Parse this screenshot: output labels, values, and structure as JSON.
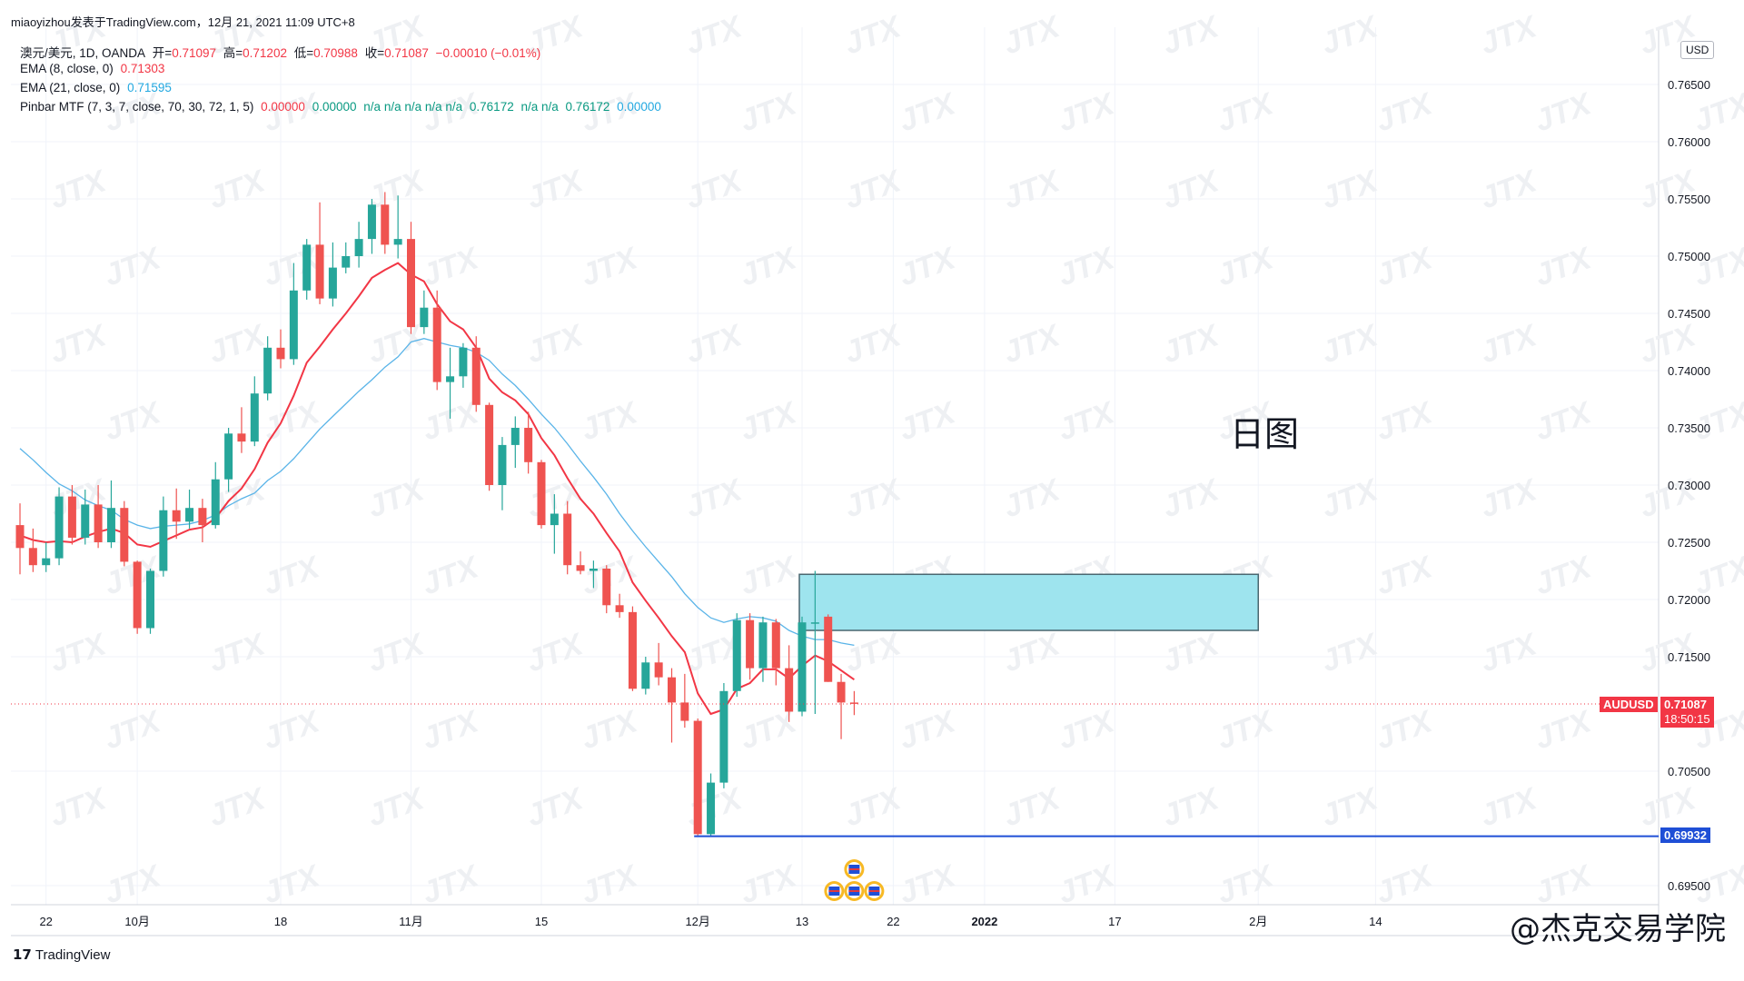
{
  "header": {
    "published_line": "miaoyizhou发表于TradingView.com，12月 21, 2021 11:09 UTC+8"
  },
  "legend": {
    "symbol_line": {
      "name": "澳元/美元, 1D, OANDA",
      "open_label": "开=",
      "open_value": "0.71097",
      "high_label": "高=",
      "high_value": "0.71202",
      "low_label": "低=",
      "low_value": "0.70988",
      "close_label": "收=",
      "close_value": "0.71087",
      "change": "−0.00010 (−0.01%)"
    },
    "ema8": {
      "label": "EMA (8, close, 0)",
      "value": "0.71303",
      "color": "#f23645"
    },
    "ema21": {
      "label": "EMA (21, close, 0)",
      "value": "0.71595",
      "color": "#22a8e0"
    },
    "pinbar": {
      "label": "Pinbar MTF (7, 3, 7, close, 70, 30, 72, 1, 5)",
      "v1": "0.00000",
      "v2": "0.00000",
      "na": "n/a n/a n/a n/a n/a",
      "v3": "0.76172",
      "na2": "n/a n/a",
      "v4": "0.76172",
      "v5": "0.00000"
    }
  },
  "currency_button": "USD",
  "annotation_text": "日图",
  "watermark_text": "@杰克交易学院",
  "logo_text": "TradingView",
  "price_tags": {
    "symbol": "AUDUSD",
    "last_price": "0.71087",
    "countdown": "18:50:15",
    "support_price": "0.69932"
  },
  "colors": {
    "up": "#26a69a",
    "down": "#ef5350",
    "ema8": "#f23645",
    "ema21": "#5ab4e8",
    "zone_fill": "#9ee4ee",
    "support_line": "#1f4fd6"
  },
  "chart_data": {
    "type": "candlestick",
    "symbol": "AUDUSD",
    "timeframe": "1D",
    "y_ticks": [
      "0.76500",
      "0.76000",
      "0.75500",
      "0.75000",
      "0.74500",
      "0.74000",
      "0.73500",
      "0.73000",
      "0.72500",
      "0.72000",
      "0.71500",
      "0.70500",
      "0.69500"
    ],
    "ylim": [
      0.694,
      0.7715
    ],
    "x_ticks": [
      {
        "label": "22",
        "bar": 2
      },
      {
        "label": "10月",
        "bar": 9
      },
      {
        "label": "18",
        "bar": 20
      },
      {
        "label": "11月",
        "bar": 30
      },
      {
        "label": "15",
        "bar": 40
      },
      {
        "label": "12月",
        "bar": 52
      },
      {
        "label": "13",
        "bar": 60
      },
      {
        "label": "22",
        "bar": 67
      },
      {
        "label": "2022",
        "bar": 74
      },
      {
        "label": "17",
        "bar": 84
      },
      {
        "label": "2月",
        "bar": 95
      },
      {
        "label": "14",
        "bar": 104
      }
    ],
    "candles": [
      [
        0.7265,
        0.7284,
        0.7222,
        0.7245
      ],
      [
        0.7245,
        0.7262,
        0.7224,
        0.723
      ],
      [
        0.723,
        0.725,
        0.7224,
        0.7236
      ],
      [
        0.7236,
        0.7298,
        0.723,
        0.729
      ],
      [
        0.729,
        0.73,
        0.7248,
        0.7254
      ],
      [
        0.7254,
        0.7296,
        0.7248,
        0.7283
      ],
      [
        0.7283,
        0.73,
        0.7245,
        0.725
      ],
      [
        0.725,
        0.7304,
        0.7245,
        0.728
      ],
      [
        0.728,
        0.7286,
        0.7229,
        0.7233
      ],
      [
        0.7233,
        0.7234,
        0.717,
        0.7175
      ],
      [
        0.7175,
        0.7227,
        0.717,
        0.7225
      ],
      [
        0.7225,
        0.729,
        0.722,
        0.7278
      ],
      [
        0.7278,
        0.7297,
        0.7253,
        0.7268
      ],
      [
        0.7268,
        0.7296,
        0.7262,
        0.728
      ],
      [
        0.728,
        0.7288,
        0.725,
        0.7265
      ],
      [
        0.7265,
        0.732,
        0.7262,
        0.7305
      ],
      [
        0.7305,
        0.735,
        0.7294,
        0.7345
      ],
      [
        0.7345,
        0.7368,
        0.7328,
        0.7338
      ],
      [
        0.7338,
        0.7395,
        0.7334,
        0.738
      ],
      [
        0.738,
        0.743,
        0.7374,
        0.742
      ],
      [
        0.742,
        0.7436,
        0.7402,
        0.741
      ],
      [
        0.741,
        0.7494,
        0.7405,
        0.747
      ],
      [
        0.747,
        0.7515,
        0.7462,
        0.751
      ],
      [
        0.751,
        0.7547,
        0.7458,
        0.7463
      ],
      [
        0.7463,
        0.7512,
        0.7456,
        0.749
      ],
      [
        0.749,
        0.7512,
        0.7485,
        0.75
      ],
      [
        0.75,
        0.753,
        0.749,
        0.7515
      ],
      [
        0.7515,
        0.755,
        0.7502,
        0.7545
      ],
      [
        0.7545,
        0.7556,
        0.7502,
        0.751
      ],
      [
        0.751,
        0.7553,
        0.7498,
        0.7515
      ],
      [
        0.7515,
        0.753,
        0.7432,
        0.7438
      ],
      [
        0.7438,
        0.747,
        0.7432,
        0.7455
      ],
      [
        0.7455,
        0.747,
        0.7383,
        0.739
      ],
      [
        0.739,
        0.742,
        0.7358,
        0.7395
      ],
      [
        0.7395,
        0.7424,
        0.7385,
        0.742
      ],
      [
        0.742,
        0.743,
        0.7364,
        0.737
      ],
      [
        0.737,
        0.7372,
        0.7295,
        0.73
      ],
      [
        0.73,
        0.7342,
        0.7278,
        0.7335
      ],
      [
        0.7335,
        0.736,
        0.7315,
        0.735
      ],
      [
        0.735,
        0.7364,
        0.731,
        0.732
      ],
      [
        0.732,
        0.7322,
        0.7262,
        0.7265
      ],
      [
        0.7265,
        0.7292,
        0.724,
        0.7275
      ],
      [
        0.7275,
        0.7286,
        0.7222,
        0.723
      ],
      [
        0.723,
        0.7242,
        0.7222,
        0.7225
      ],
      [
        0.7225,
        0.7234,
        0.721,
        0.7227
      ],
      [
        0.7227,
        0.723,
        0.7188,
        0.7195
      ],
      [
        0.7195,
        0.7205,
        0.7184,
        0.7189
      ],
      [
        0.7189,
        0.7194,
        0.712,
        0.7122
      ],
      [
        0.7122,
        0.715,
        0.7117,
        0.7145
      ],
      [
        0.7145,
        0.7162,
        0.7125,
        0.7132
      ],
      [
        0.7132,
        0.714,
        0.7075,
        0.711
      ],
      [
        0.711,
        0.7135,
        0.7088,
        0.7094
      ],
      [
        0.7094,
        0.7096,
        0.6993,
        0.6995
      ],
      [
        0.6995,
        0.7048,
        0.6993,
        0.704
      ],
      [
        0.704,
        0.7127,
        0.7035,
        0.712
      ],
      [
        0.712,
        0.7188,
        0.7115,
        0.7182
      ],
      [
        0.7182,
        0.7188,
        0.713,
        0.714
      ],
      [
        0.714,
        0.7185,
        0.7128,
        0.718
      ],
      [
        0.718,
        0.7183,
        0.7125,
        0.714
      ],
      [
        0.714,
        0.716,
        0.7093,
        0.7102
      ],
      [
        0.7102,
        0.7185,
        0.7098,
        0.718
      ],
      [
        0.718,
        0.7225,
        0.71,
        0.718
      ],
      [
        0.7185,
        0.7187,
        0.7128,
        0.7128
      ],
      [
        0.7128,
        0.7135,
        0.7078,
        0.711
      ],
      [
        0.711,
        0.712,
        0.7099,
        0.7109
      ]
    ],
    "ema8": [
      0.7256,
      0.7252,
      0.725,
      0.7251,
      0.725,
      0.7255,
      0.7259,
      0.7262,
      0.7258,
      0.7248,
      0.7246,
      0.7251,
      0.7256,
      0.7261,
      0.7263,
      0.7271,
      0.7286,
      0.7297,
      0.7314,
      0.7337,
      0.7354,
      0.7378,
      0.7407,
      0.7421,
      0.7436,
      0.745,
      0.7465,
      0.7481,
      0.7488,
      0.7494,
      0.7484,
      0.7478,
      0.7458,
      0.7443,
      0.7436,
      0.742,
      0.7393,
      0.7381,
      0.7374,
      0.7362,
      0.7341,
      0.7326,
      0.7306,
      0.7288,
      0.7275,
      0.7258,
      0.7242,
      0.7215,
      0.7199,
      0.7184,
      0.7168,
      0.7154,
      0.7118,
      0.71,
      0.7104,
      0.7122,
      0.7127,
      0.7139,
      0.7139,
      0.7131,
      0.7142,
      0.7151,
      0.7146,
      0.7138,
      0.713
    ],
    "ema21": [
      0.7332,
      0.7322,
      0.7311,
      0.7301,
      0.7295,
      0.7287,
      0.7282,
      0.7278,
      0.727,
      0.7265,
      0.7262,
      0.7264,
      0.7265,
      0.7266,
      0.7269,
      0.7274,
      0.7282,
      0.7288,
      0.7293,
      0.7304,
      0.7312,
      0.7323,
      0.7336,
      0.7349,
      0.736,
      0.7371,
      0.7382,
      0.7392,
      0.7403,
      0.7412,
      0.7425,
      0.7428,
      0.7425,
      0.7422,
      0.742,
      0.7416,
      0.7409,
      0.7397,
      0.7387,
      0.7375,
      0.7362,
      0.735,
      0.7336,
      0.7321,
      0.7307,
      0.7292,
      0.7275,
      0.726,
      0.7246,
      0.7233,
      0.722,
      0.7205,
      0.7193,
      0.7184,
      0.718,
      0.7183,
      0.7185,
      0.7184,
      0.7181,
      0.7173,
      0.7168,
      0.7165,
      0.7165,
      0.7162,
      0.716
    ],
    "resistance_zone": {
      "from_bar": 60,
      "to_bar": 95,
      "top": 0.7222,
      "bottom": 0.7173
    },
    "support_level": {
      "from_bar": 52,
      "value": 0.69932
    },
    "last_price_line": 0.71087
  }
}
